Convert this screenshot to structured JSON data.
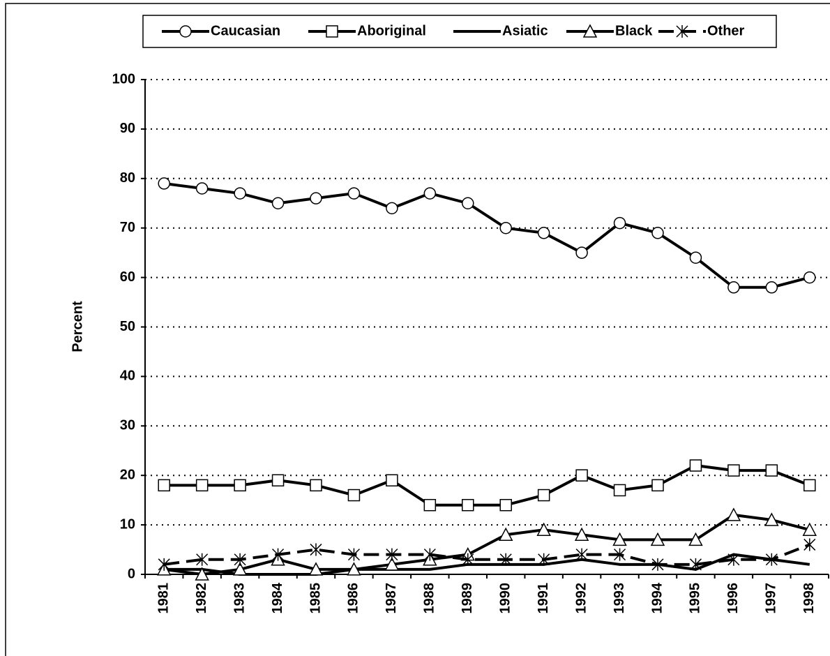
{
  "chart_data": {
    "type": "line",
    "y_label": "Percent",
    "categories": [
      "1981",
      "1982",
      "1983",
      "1984",
      "1985",
      "1986",
      "1987",
      "1988",
      "1989",
      "1990",
      "1991",
      "1992",
      "1993",
      "1994",
      "1995",
      "1996",
      "1997",
      "1998"
    ],
    "series": [
      {
        "name": "Caucasian",
        "color": "#000000",
        "marker": "circle",
        "dashed": false,
        "values": [
          79,
          78,
          77,
          75,
          76,
          77,
          74,
          77,
          75,
          70,
          69,
          65,
          71,
          69,
          64,
          58,
          58,
          60
        ]
      },
      {
        "name": "Aboriginal",
        "color": "#000000",
        "marker": "square",
        "dashed": false,
        "values": [
          18,
          18,
          18,
          19,
          18,
          16,
          19,
          14,
          14,
          14,
          16,
          20,
          17,
          18,
          22,
          21,
          21,
          18
        ]
      },
      {
        "name": "Asiatic",
        "color": "#000000",
        "marker": "none",
        "dashed": false,
        "values": [
          1,
          1,
          0,
          0,
          0,
          1,
          1,
          1,
          2,
          2,
          2,
          3,
          2,
          2,
          1,
          4,
          3,
          2
        ]
      },
      {
        "name": "Black",
        "color": "#000000",
        "marker": "triangle",
        "dashed": false,
        "values": [
          1,
          0,
          1,
          3,
          1,
          1,
          2,
          3,
          4,
          8,
          9,
          8,
          7,
          7,
          7,
          12,
          11,
          9
        ]
      },
      {
        "name": "Other",
        "color": "#000000",
        "marker": "asterisk",
        "dashed": true,
        "values": [
          2,
          3,
          3,
          4,
          5,
          4,
          4,
          4,
          3,
          3,
          3,
          4,
          4,
          2,
          2,
          3,
          3,
          6
        ]
      }
    ],
    "ylim": [
      0,
      100
    ],
    "yticks": [
      0,
      10,
      20,
      30,
      40,
      50,
      60,
      70,
      80,
      90,
      100
    ],
    "grid": true,
    "legend": "top"
  }
}
